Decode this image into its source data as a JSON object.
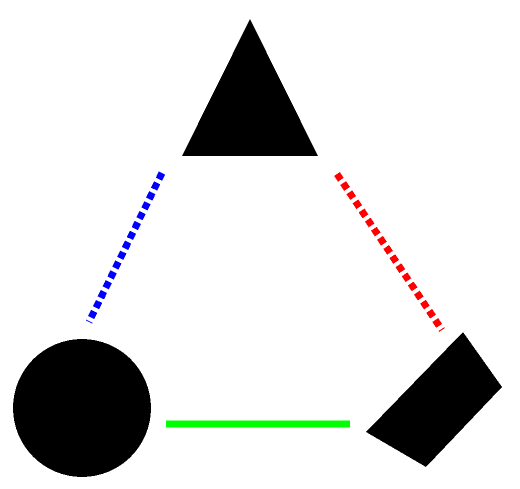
{
  "diagram": {
    "background_color": "#ffffff",
    "shapes": [
      {
        "id": "triangle",
        "kind": "triangle",
        "fill": "#000000"
      },
      {
        "id": "circle",
        "kind": "circle",
        "fill": "#000000"
      },
      {
        "id": "parallelogram",
        "kind": "parallelogram",
        "fill": "#000000"
      }
    ],
    "connectors": [
      {
        "id": "triangle-to-circle",
        "from": "triangle",
        "to": "circle",
        "color": "#0000ff",
        "style": "dashed"
      },
      {
        "id": "triangle-to-parallelogram",
        "from": "triangle",
        "to": "parallelogram",
        "color": "#ff0000",
        "style": "dashed"
      },
      {
        "id": "circle-to-parallelogram",
        "from": "circle",
        "to": "parallelogram",
        "color": "#00ff00",
        "style": "solid"
      }
    ]
  }
}
